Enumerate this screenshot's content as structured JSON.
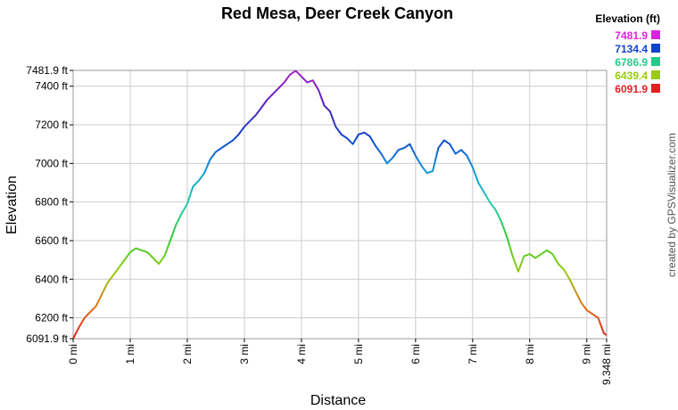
{
  "chart_data": {
    "type": "line",
    "title": "Red Mesa, Deer Creek Canyon",
    "xlabel": "Distance",
    "ylabel": "Elevation",
    "xlim": [
      0,
      9.348
    ],
    "ylim": [
      6091.9,
      7481.9
    ],
    "x_ticks": [
      {
        "v": 0,
        "label": "0 mi"
      },
      {
        "v": 1,
        "label": "1 mi"
      },
      {
        "v": 2,
        "label": "2 mi"
      },
      {
        "v": 3,
        "label": "3 mi"
      },
      {
        "v": 4,
        "label": "4 mi"
      },
      {
        "v": 5,
        "label": "5 mi"
      },
      {
        "v": 6,
        "label": "6 mi"
      },
      {
        "v": 7,
        "label": "7 mi"
      },
      {
        "v": 8,
        "label": "8 mi"
      },
      {
        "v": 9,
        "label": "9 mi"
      },
      {
        "v": 9.348,
        "label": "9.348 mi"
      }
    ],
    "y_ticks": [
      {
        "v": 6091.9,
        "label": "6091.9 ft"
      },
      {
        "v": 6200,
        "label": "6200 ft"
      },
      {
        "v": 6400,
        "label": "6400 ft"
      },
      {
        "v": 6600,
        "label": "6600 ft"
      },
      {
        "v": 6800,
        "label": "6800 ft"
      },
      {
        "v": 7000,
        "label": "7000 ft"
      },
      {
        "v": 7200,
        "label": "7200 ft"
      },
      {
        "v": 7400,
        "label": "7400 ft"
      },
      {
        "v": 7481.9,
        "label": "7481.9 ft"
      }
    ],
    "grid": true,
    "series": [
      {
        "x": [
          0,
          0.1,
          0.2,
          0.3,
          0.4,
          0.5,
          0.6,
          0.7,
          0.8,
          0.9,
          1.0,
          1.1,
          1.2,
          1.3,
          1.4,
          1.5,
          1.6,
          1.7,
          1.8,
          1.9,
          2.0,
          2.1,
          2.2,
          2.3,
          2.4,
          2.5,
          2.6,
          2.7,
          2.8,
          2.9,
          3.0,
          3.1,
          3.2,
          3.3,
          3.4,
          3.5,
          3.6,
          3.7,
          3.8,
          3.9,
          4.0,
          4.1,
          4.2,
          4.3,
          4.4,
          4.5,
          4.6,
          4.7,
          4.8,
          4.9,
          5.0,
          5.1,
          5.2,
          5.3,
          5.4,
          5.5,
          5.6,
          5.7,
          5.8,
          5.9,
          6.0,
          6.1,
          6.2,
          6.3,
          6.4,
          6.5,
          6.6,
          6.7,
          6.8,
          6.9,
          7.0,
          7.1,
          7.2,
          7.3,
          7.4,
          7.5,
          7.6,
          7.7,
          7.8,
          7.9,
          8.0,
          8.1,
          8.2,
          8.3,
          8.4,
          8.5,
          8.6,
          8.7,
          8.8,
          8.9,
          9.0,
          9.1,
          9.2,
          9.3,
          9.348
        ],
        "y": [
          6092,
          6150,
          6200,
          6230,
          6260,
          6320,
          6380,
          6420,
          6460,
          6500,
          6540,
          6560,
          6550,
          6540,
          6510,
          6480,
          6520,
          6600,
          6680,
          6740,
          6790,
          6880,
          6910,
          6950,
          7020,
          7060,
          7080,
          7100,
          7120,
          7150,
          7190,
          7220,
          7250,
          7290,
          7330,
          7360,
          7390,
          7420,
          7460,
          7480,
          7450,
          7420,
          7430,
          7380,
          7300,
          7270,
          7190,
          7150,
          7130,
          7100,
          7150,
          7160,
          7140,
          7090,
          7050,
          7000,
          7030,
          7070,
          7080,
          7100,
          7040,
          6990,
          6950,
          6960,
          7080,
          7120,
          7100,
          7050,
          7070,
          7040,
          6980,
          6900,
          6850,
          6800,
          6760,
          6700,
          6620,
          6520,
          6440,
          6520,
          6530,
          6510,
          6530,
          6550,
          6530,
          6480,
          6450,
          6400,
          6340,
          6280,
          6240,
          6220,
          6200,
          6120,
          6110
        ]
      }
    ]
  },
  "legend": {
    "title": "Elevation (ft)",
    "items": [
      {
        "label": "7481.9",
        "color": "#dd22dd"
      },
      {
        "label": "7134.4",
        "color": "#1144cc"
      },
      {
        "label": "6786.9",
        "color": "#22cc88"
      },
      {
        "label": "6439.4",
        "color": "#99cc11"
      },
      {
        "label": "6091.9",
        "color": "#dd2222"
      }
    ]
  },
  "credit": "created by GPSVisualizer.com",
  "colors": {
    "grid": "#cccccc",
    "gradient": [
      "#dd2222",
      "#dd7711",
      "#99cc11",
      "#33cc33",
      "#22ccaa",
      "#1199dd",
      "#1144cc",
      "#5522bb",
      "#aa22cc"
    ]
  }
}
